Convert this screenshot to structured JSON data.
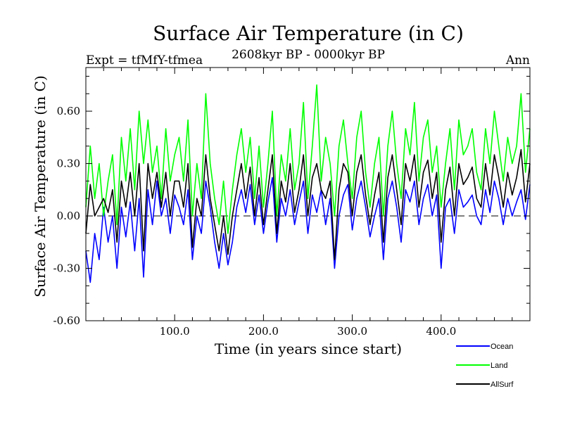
{
  "chart_data": {
    "type": "line",
    "title": "Surface Air Temperature (in C)",
    "subtitle": "2608kyr BP - 0000kyr BP",
    "left_note": "Expt = tfMfY-tfmea",
    "right_note": "Ann",
    "xlabel": "Time (in years since start)",
    "ylabel": "Surface Air Temperature (in C)",
    "xlim": [
      0,
      500
    ],
    "ylim": [
      -0.6,
      0.85
    ],
    "x_ticks": [
      100,
      200,
      300,
      400
    ],
    "x_tick_labels": [
      "100.0",
      "200.0",
      "300.0",
      "400.0"
    ],
    "y_ticks": [
      -0.6,
      -0.3,
      0.0,
      0.3,
      0.6
    ],
    "y_tick_labels": [
      "-0.60",
      "-0.30",
      "0.00",
      "0.30",
      "0.60"
    ],
    "zero_line": true,
    "legend_position": "bottom-right",
    "series": [
      {
        "name": "Ocean",
        "color": "#0000ff",
        "x": [
          0,
          5,
          10,
          15,
          20,
          25,
          30,
          35,
          40,
          45,
          50,
          55,
          60,
          65,
          70,
          75,
          80,
          85,
          90,
          95,
          100,
          105,
          110,
          115,
          120,
          125,
          130,
          135,
          140,
          145,
          150,
          155,
          160,
          165,
          170,
          175,
          180,
          185,
          190,
          195,
          200,
          205,
          210,
          215,
          220,
          225,
          230,
          235,
          240,
          245,
          250,
          255,
          260,
          265,
          270,
          275,
          280,
          285,
          290,
          295,
          300,
          305,
          310,
          315,
          320,
          325,
          330,
          335,
          340,
          345,
          350,
          355,
          360,
          365,
          370,
          375,
          380,
          385,
          390,
          395,
          400,
          405,
          410,
          415,
          420,
          425,
          430,
          435,
          440,
          445,
          450,
          455,
          460,
          465,
          470,
          475,
          480,
          485,
          490,
          495,
          500
        ],
        "values": [
          -0.2,
          -0.38,
          -0.1,
          -0.25,
          0.05,
          -0.15,
          0.0,
          -0.3,
          0.05,
          -0.12,
          0.08,
          -0.2,
          0.1,
          -0.35,
          0.15,
          -0.05,
          0.2,
          0.0,
          0.1,
          -0.1,
          0.12,
          0.05,
          -0.05,
          0.15,
          -0.25,
          0.0,
          -0.1,
          0.2,
          0.05,
          -0.15,
          -0.3,
          -0.1,
          -0.28,
          -0.15,
          0.05,
          0.15,
          0.02,
          0.18,
          -0.05,
          0.12,
          -0.1,
          0.08,
          0.22,
          -0.15,
          0.1,
          0.0,
          0.15,
          -0.05,
          0.08,
          0.2,
          -0.1,
          0.12,
          0.02,
          0.15,
          -0.05,
          0.1,
          -0.3,
          0.0,
          0.12,
          0.18,
          -0.08,
          0.1,
          0.2,
          0.05,
          -0.12,
          0.0,
          0.1,
          -0.25,
          0.1,
          0.2,
          0.05,
          -0.15,
          0.15,
          0.08,
          0.2,
          -0.05,
          0.1,
          0.18,
          0.0,
          0.12,
          -0.3,
          0.05,
          0.1,
          -0.1,
          0.15,
          0.05,
          0.08,
          0.12,
          0.0,
          -0.05,
          0.15,
          0.02,
          0.2,
          0.1,
          -0.05,
          0.1,
          0.0,
          0.08,
          0.15,
          -0.02,
          0.18
        ]
      },
      {
        "name": "Land",
        "color": "#00ff00",
        "x": [
          0,
          5,
          10,
          15,
          20,
          25,
          30,
          35,
          40,
          45,
          50,
          55,
          60,
          65,
          70,
          75,
          80,
          85,
          90,
          95,
          100,
          105,
          110,
          115,
          120,
          125,
          130,
          135,
          140,
          145,
          150,
          155,
          160,
          165,
          170,
          175,
          180,
          185,
          190,
          195,
          200,
          205,
          210,
          215,
          220,
          225,
          230,
          235,
          240,
          245,
          250,
          255,
          260,
          265,
          270,
          275,
          280,
          285,
          290,
          295,
          300,
          305,
          310,
          315,
          320,
          325,
          330,
          335,
          340,
          345,
          350,
          355,
          360,
          365,
          370,
          375,
          380,
          385,
          390,
          395,
          400,
          405,
          410,
          415,
          420,
          425,
          430,
          435,
          440,
          445,
          450,
          455,
          460,
          465,
          470,
          475,
          480,
          485,
          490,
          495,
          500
        ],
        "values": [
          0.05,
          0.4,
          0.1,
          0.3,
          0.0,
          0.2,
          0.35,
          -0.05,
          0.45,
          0.2,
          0.5,
          0.15,
          0.6,
          0.3,
          0.55,
          0.25,
          0.4,
          0.1,
          0.5,
          0.2,
          0.35,
          0.45,
          0.2,
          0.55,
          0.0,
          0.3,
          0.1,
          0.7,
          0.3,
          0.1,
          -0.05,
          0.2,
          -0.1,
          0.15,
          0.35,
          0.5,
          0.25,
          0.45,
          0.1,
          0.4,
          0.05,
          0.3,
          0.6,
          0.0,
          0.35,
          0.2,
          0.5,
          0.15,
          0.3,
          0.65,
          0.1,
          0.4,
          0.75,
          0.2,
          0.45,
          0.3,
          0.0,
          0.4,
          0.55,
          0.3,
          0.1,
          0.45,
          0.6,
          0.25,
          0.05,
          0.3,
          0.45,
          0.0,
          0.4,
          0.6,
          0.3,
          0.1,
          0.5,
          0.35,
          0.65,
          0.2,
          0.45,
          0.55,
          0.25,
          0.4,
          0.05,
          0.3,
          0.5,
          0.15,
          0.55,
          0.35,
          0.4,
          0.5,
          0.25,
          0.15,
          0.5,
          0.3,
          0.6,
          0.4,
          0.2,
          0.45,
          0.3,
          0.4,
          0.7,
          0.25,
          0.5
        ]
      },
      {
        "name": "AllSurf",
        "color": "#000000",
        "x": [
          0,
          5,
          10,
          15,
          20,
          25,
          30,
          35,
          40,
          45,
          50,
          55,
          60,
          65,
          70,
          75,
          80,
          85,
          90,
          95,
          100,
          105,
          110,
          115,
          120,
          125,
          130,
          135,
          140,
          145,
          150,
          155,
          160,
          165,
          170,
          175,
          180,
          185,
          190,
          195,
          200,
          205,
          210,
          215,
          220,
          225,
          230,
          235,
          240,
          245,
          250,
          255,
          260,
          265,
          270,
          275,
          280,
          285,
          290,
          295,
          300,
          305,
          310,
          315,
          320,
          325,
          330,
          335,
          340,
          345,
          350,
          355,
          360,
          365,
          370,
          375,
          380,
          385,
          390,
          395,
          400,
          405,
          410,
          415,
          420,
          425,
          430,
          435,
          440,
          445,
          450,
          455,
          460,
          465,
          470,
          475,
          480,
          485,
          490,
          495,
          500
        ],
        "values": [
          -0.1,
          0.18,
          0.0,
          0.05,
          0.1,
          0.02,
          0.15,
          -0.15,
          0.2,
          0.05,
          0.25,
          0.0,
          0.3,
          -0.2,
          0.3,
          0.1,
          0.25,
          0.05,
          0.25,
          0.0,
          0.2,
          0.2,
          0.05,
          0.3,
          -0.18,
          0.1,
          0.0,
          0.35,
          0.1,
          -0.05,
          -0.2,
          0.0,
          -0.22,
          0.0,
          0.15,
          0.3,
          0.1,
          0.28,
          0.0,
          0.22,
          -0.05,
          0.15,
          0.35,
          -0.1,
          0.2,
          0.08,
          0.3,
          0.02,
          0.15,
          0.35,
          0.0,
          0.22,
          0.3,
          0.15,
          0.1,
          0.2,
          -0.25,
          0.15,
          0.3,
          0.25,
          0.0,
          0.25,
          0.35,
          0.12,
          -0.05,
          0.12,
          0.25,
          -0.15,
          0.22,
          0.35,
          0.15,
          -0.05,
          0.3,
          0.2,
          0.35,
          0.05,
          0.25,
          0.32,
          0.1,
          0.25,
          -0.15,
          0.15,
          0.28,
          0.0,
          0.3,
          0.18,
          0.22,
          0.28,
          0.1,
          0.05,
          0.3,
          0.12,
          0.35,
          0.22,
          0.05,
          0.25,
          0.12,
          0.22,
          0.38,
          0.08,
          0.3
        ]
      }
    ]
  }
}
